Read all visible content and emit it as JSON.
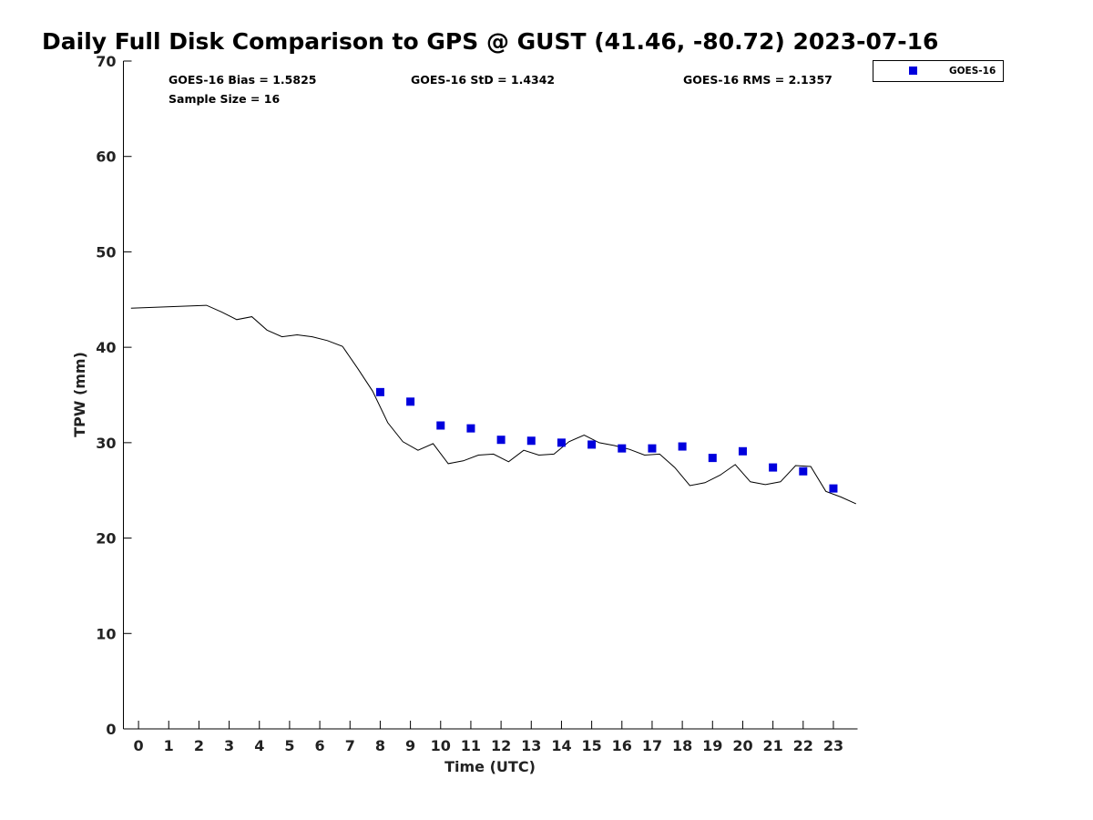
{
  "chart_data": {
    "type": "scatter",
    "title": "Daily Full Disk Comparison to GPS @ GUST (41.46, -80.72) 2023-07-16",
    "xlabel": "Time (UTC)",
    "ylabel": "TPW (mm)",
    "xlim": [
      -0.5,
      23.8
    ],
    "ylim": [
      0,
      70
    ],
    "x_ticks": [
      0,
      1,
      2,
      3,
      4,
      5,
      6,
      7,
      8,
      9,
      10,
      11,
      12,
      13,
      14,
      15,
      16,
      17,
      18,
      19,
      20,
      21,
      22,
      23
    ],
    "y_ticks": [
      0,
      10,
      20,
      30,
      40,
      50,
      60,
      70
    ],
    "grid": false,
    "legend_position": "top-right, outside plot",
    "stats": {
      "bias": "GOES-16 Bias = 1.5825",
      "std": "GOES-16 StD = 1.4342",
      "rms": "GOES-16 RMS = 2.1357",
      "sample_size": "Sample Size = 16"
    },
    "series": [
      {
        "name": "GOES-16",
        "kind": "scatter",
        "marker": "square",
        "color": "#0000dd",
        "x": [
          8,
          9,
          10,
          11,
          12,
          13,
          14,
          15,
          16,
          17,
          18,
          19,
          20,
          21,
          22,
          23
        ],
        "y": [
          35.3,
          34.3,
          31.8,
          31.5,
          30.3,
          30.2,
          30.0,
          29.8,
          29.4,
          29.4,
          29.6,
          28.4,
          29.1,
          27.4,
          27.0,
          25.2
        ]
      },
      {
        "kind": "line",
        "color": "#000000",
        "x": [
          -0.25,
          2.25,
          2.75,
          3.25,
          3.75,
          4.25,
          4.75,
          5.25,
          5.75,
          6.25,
          6.75,
          7.25,
          7.75,
          8.25,
          8.75,
          9.25,
          9.75,
          10.25,
          10.75,
          11.25,
          11.75,
          12.25,
          12.75,
          13.25,
          13.75,
          14.25,
          14.75,
          15.25,
          15.75,
          16.25,
          16.75,
          17.25,
          17.75,
          18.25,
          18.75,
          19.25,
          19.75,
          20.25,
          20.75,
          21.25,
          21.75,
          22.25,
          22.75,
          23.25,
          23.75
        ],
        "y": [
          44.1,
          44.4,
          43.7,
          42.9,
          43.2,
          41.8,
          41.1,
          41.3,
          41.1,
          40.7,
          40.1,
          37.8,
          35.4,
          32.1,
          30.1,
          29.2,
          29.9,
          27.8,
          28.1,
          28.7,
          28.8,
          28.0,
          29.2,
          28.7,
          28.8,
          30.1,
          30.8,
          30.0,
          29.7,
          29.3,
          28.7,
          28.8,
          27.4,
          25.5,
          25.8,
          26.6,
          27.7,
          25.9,
          25.6,
          25.9,
          27.6,
          27.5,
          24.9,
          24.3,
          23.6
        ]
      }
    ]
  }
}
